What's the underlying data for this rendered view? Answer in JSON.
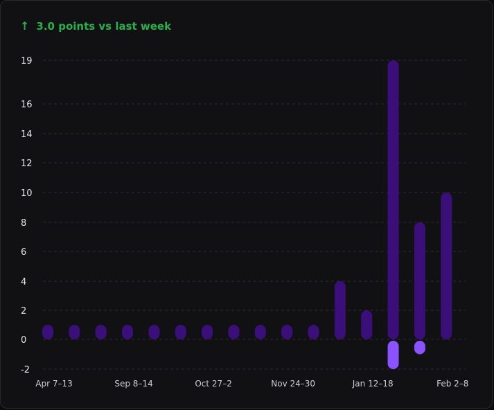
{
  "header": {
    "delta_icon": "arrow-up-icon",
    "delta_text": "3.0 points vs last week",
    "accent": "#27b04a"
  },
  "colors": {
    "positive": "#3a0f7a",
    "negative": "#8b52ff",
    "grid": "#2c2c33"
  },
  "chart_data": {
    "type": "bar",
    "grid": true,
    "ylim": [
      -2,
      19
    ],
    "yticks": [
      -2,
      0,
      2,
      4,
      6,
      8,
      10,
      12,
      14,
      16,
      19
    ],
    "x_tick_labels": [
      {
        "index": 0,
        "label": "Apr 7–13"
      },
      {
        "index": 3,
        "label": "Sep 8–14"
      },
      {
        "index": 6,
        "label": "Oct 27–2"
      },
      {
        "index": 9,
        "label": "Nov 24–30"
      },
      {
        "index": 12,
        "label": "Jan 12–18"
      },
      {
        "index": 15,
        "label": "Feb 2–8"
      }
    ],
    "values": [
      {
        "pos": 1,
        "neg": 0
      },
      {
        "pos": 1,
        "neg": 0
      },
      {
        "pos": 1,
        "neg": 0
      },
      {
        "pos": 1,
        "neg": 0
      },
      {
        "pos": 1,
        "neg": 0
      },
      {
        "pos": 1,
        "neg": 0
      },
      {
        "pos": 1,
        "neg": 0
      },
      {
        "pos": 1,
        "neg": 0
      },
      {
        "pos": 1,
        "neg": 0
      },
      {
        "pos": 1,
        "neg": 0
      },
      {
        "pos": 1,
        "neg": 0
      },
      {
        "pos": 4,
        "neg": 0
      },
      {
        "pos": 2,
        "neg": 0
      },
      {
        "pos": 19,
        "neg": -2
      },
      {
        "pos": 8,
        "neg": -1
      },
      {
        "pos": 10,
        "neg": 0
      }
    ]
  }
}
